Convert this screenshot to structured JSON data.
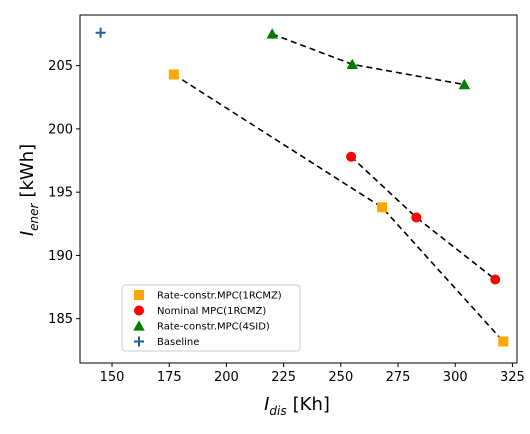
{
  "chart_data": {
    "type": "scatter",
    "xlabel_main": "I",
    "xlabel_sub": "dis",
    "xlabel_unit": "[Kh]",
    "ylabel_main": "I",
    "ylabel_sub": "ener",
    "ylabel_unit": "[kWh]",
    "xlim": [
      136,
      327
    ],
    "ylim": [
      181.5,
      209
    ],
    "xticks": [
      150,
      175,
      200,
      225,
      250,
      275,
      300,
      325
    ],
    "yticks": [
      185,
      190,
      195,
      200,
      205
    ],
    "legend_position": "lower-left",
    "series": [
      {
        "name": "Rate-constr.MPC(1RCMZ)",
        "marker": "square",
        "color": "#ffa500",
        "dashed_line": true,
        "points": [
          [
            177,
            204.3
          ],
          [
            268,
            193.8
          ],
          [
            321,
            183.2
          ]
        ]
      },
      {
        "name": "Nominal MPC(1RCMZ)",
        "marker": "circle",
        "color": "#ff0000",
        "dashed_line": true,
        "points": [
          [
            254.5,
            197.8
          ],
          [
            283,
            193.0
          ],
          [
            317.5,
            188.1
          ]
        ]
      },
      {
        "name": "Rate-constr.MPC(4SID)",
        "marker": "triangle",
        "color": "#008000",
        "dashed_line": true,
        "points": [
          [
            220,
            207.5
          ],
          [
            255,
            205.1
          ],
          [
            304,
            203.5
          ]
        ]
      },
      {
        "name": "Baseline",
        "marker": "plus",
        "color": "#1f5f9a",
        "dashed_line": false,
        "points": [
          [
            145,
            207.6
          ]
        ]
      }
    ]
  }
}
